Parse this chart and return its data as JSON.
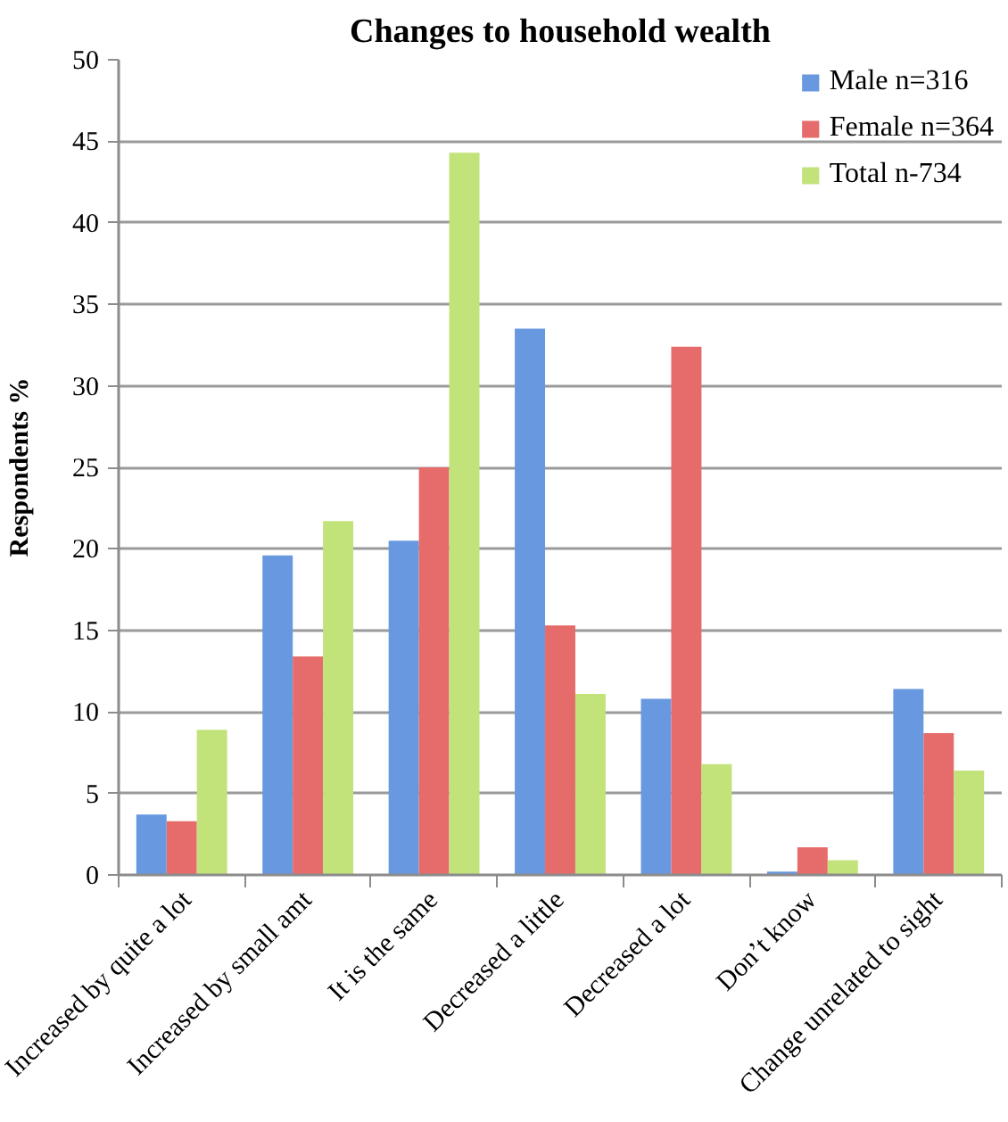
{
  "chart_data": {
    "type": "bar",
    "title": "Changes to household wealth",
    "ylabel": "Respondents %",
    "categories": [
      "Increased by quite a lot",
      "Increased by small amt",
      "It is the same",
      "Decreased a little",
      "Decreased a lot",
      "Don’t know",
      "Change unrelated to sight"
    ],
    "series": [
      {
        "name": "Male n=316",
        "color": "#6898e0",
        "values": [
          3.7,
          19.6,
          20.5,
          33.5,
          10.8,
          0.2,
          11.4
        ]
      },
      {
        "name": "Female n=364",
        "color": "#e56c6a",
        "values": [
          3.3,
          13.4,
          25.0,
          15.3,
          32.4,
          1.7,
          8.7
        ]
      },
      {
        "name": "Total n-734",
        "color": "#c2e27a",
        "values": [
          8.9,
          21.7,
          44.3,
          11.1,
          6.8,
          0.9,
          6.4
        ]
      }
    ],
    "ylim": [
      0,
      50
    ],
    "yticks": [
      0,
      5,
      10,
      15,
      20,
      25,
      30,
      35,
      40,
      45,
      50
    ],
    "grid": "y",
    "legend": "top right"
  }
}
